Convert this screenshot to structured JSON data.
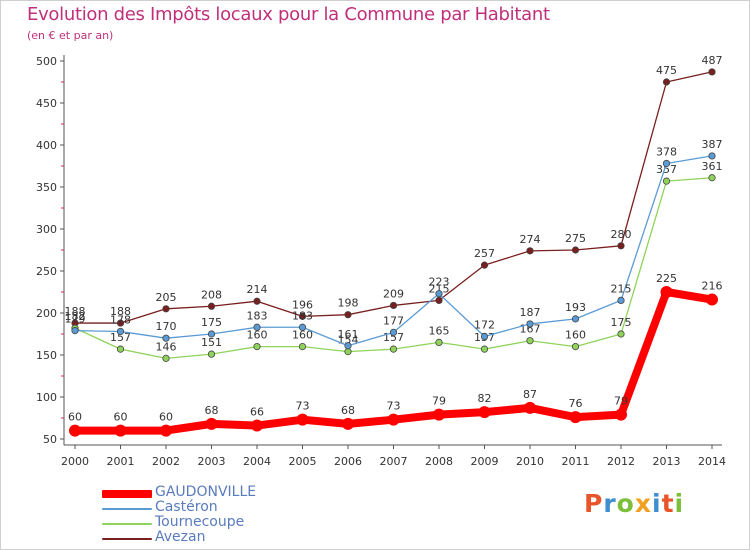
{
  "header": {
    "title": "Evolution des Impôts locaux pour la Commune par Habitant",
    "subtitle": "(en € et par an)"
  },
  "logo": {
    "letters": [
      "P",
      "r",
      "o",
      "x",
      "i",
      "t",
      "i"
    ],
    "colors": [
      "#e8552a",
      "#3e8ed0",
      "#7cbf3a",
      "#f0a020",
      "#3e8ed0",
      "#e8552a",
      "#7cbf3a"
    ]
  },
  "chart_data": {
    "type": "line",
    "title": "Evolution des Impôts locaux pour la Commune par Habitant",
    "subtitle": "(en € et par an)",
    "xlabel": "",
    "ylabel": "",
    "ylim": [
      50,
      500
    ],
    "yticks": [
      50,
      100,
      150,
      200,
      250,
      300,
      350,
      400,
      450,
      500
    ],
    "categories": [
      "2000",
      "2001",
      "2002",
      "2003",
      "2004",
      "2005",
      "2006",
      "2007",
      "2008",
      "2009",
      "2010",
      "2011",
      "2012",
      "2013",
      "2014"
    ],
    "grid": false,
    "legend_position": "bottom-left",
    "series": [
      {
        "name": "Avezan",
        "color": "#7a1f1f",
        "values": [
          188,
          188,
          205,
          208,
          214,
          196,
          198,
          209,
          215,
          257,
          274,
          275,
          280,
          475,
          487
        ]
      },
      {
        "name": "Tournecoupe",
        "color": "#8fd35a",
        "values": [
          182,
          157,
          146,
          151,
          160,
          160,
          154,
          157,
          165,
          157,
          167,
          160,
          175,
          357,
          361
        ]
      },
      {
        "name": "Castéron",
        "color": "#5b9bd5",
        "values": [
          179,
          178,
          170,
          175,
          183,
          183,
          161,
          177,
          223,
          172,
          187,
          193,
          215,
          378,
          387
        ]
      },
      {
        "name": "GAUDONVILLE",
        "color": "#ff0000",
        "values": [
          60,
          60,
          60,
          68,
          66,
          73,
          68,
          73,
          79,
          82,
          87,
          76,
          79,
          225,
          216
        ]
      }
    ],
    "legend": [
      "GAUDONVILLE",
      "Castéron",
      "Tournecoupe",
      "Avezan"
    ]
  }
}
